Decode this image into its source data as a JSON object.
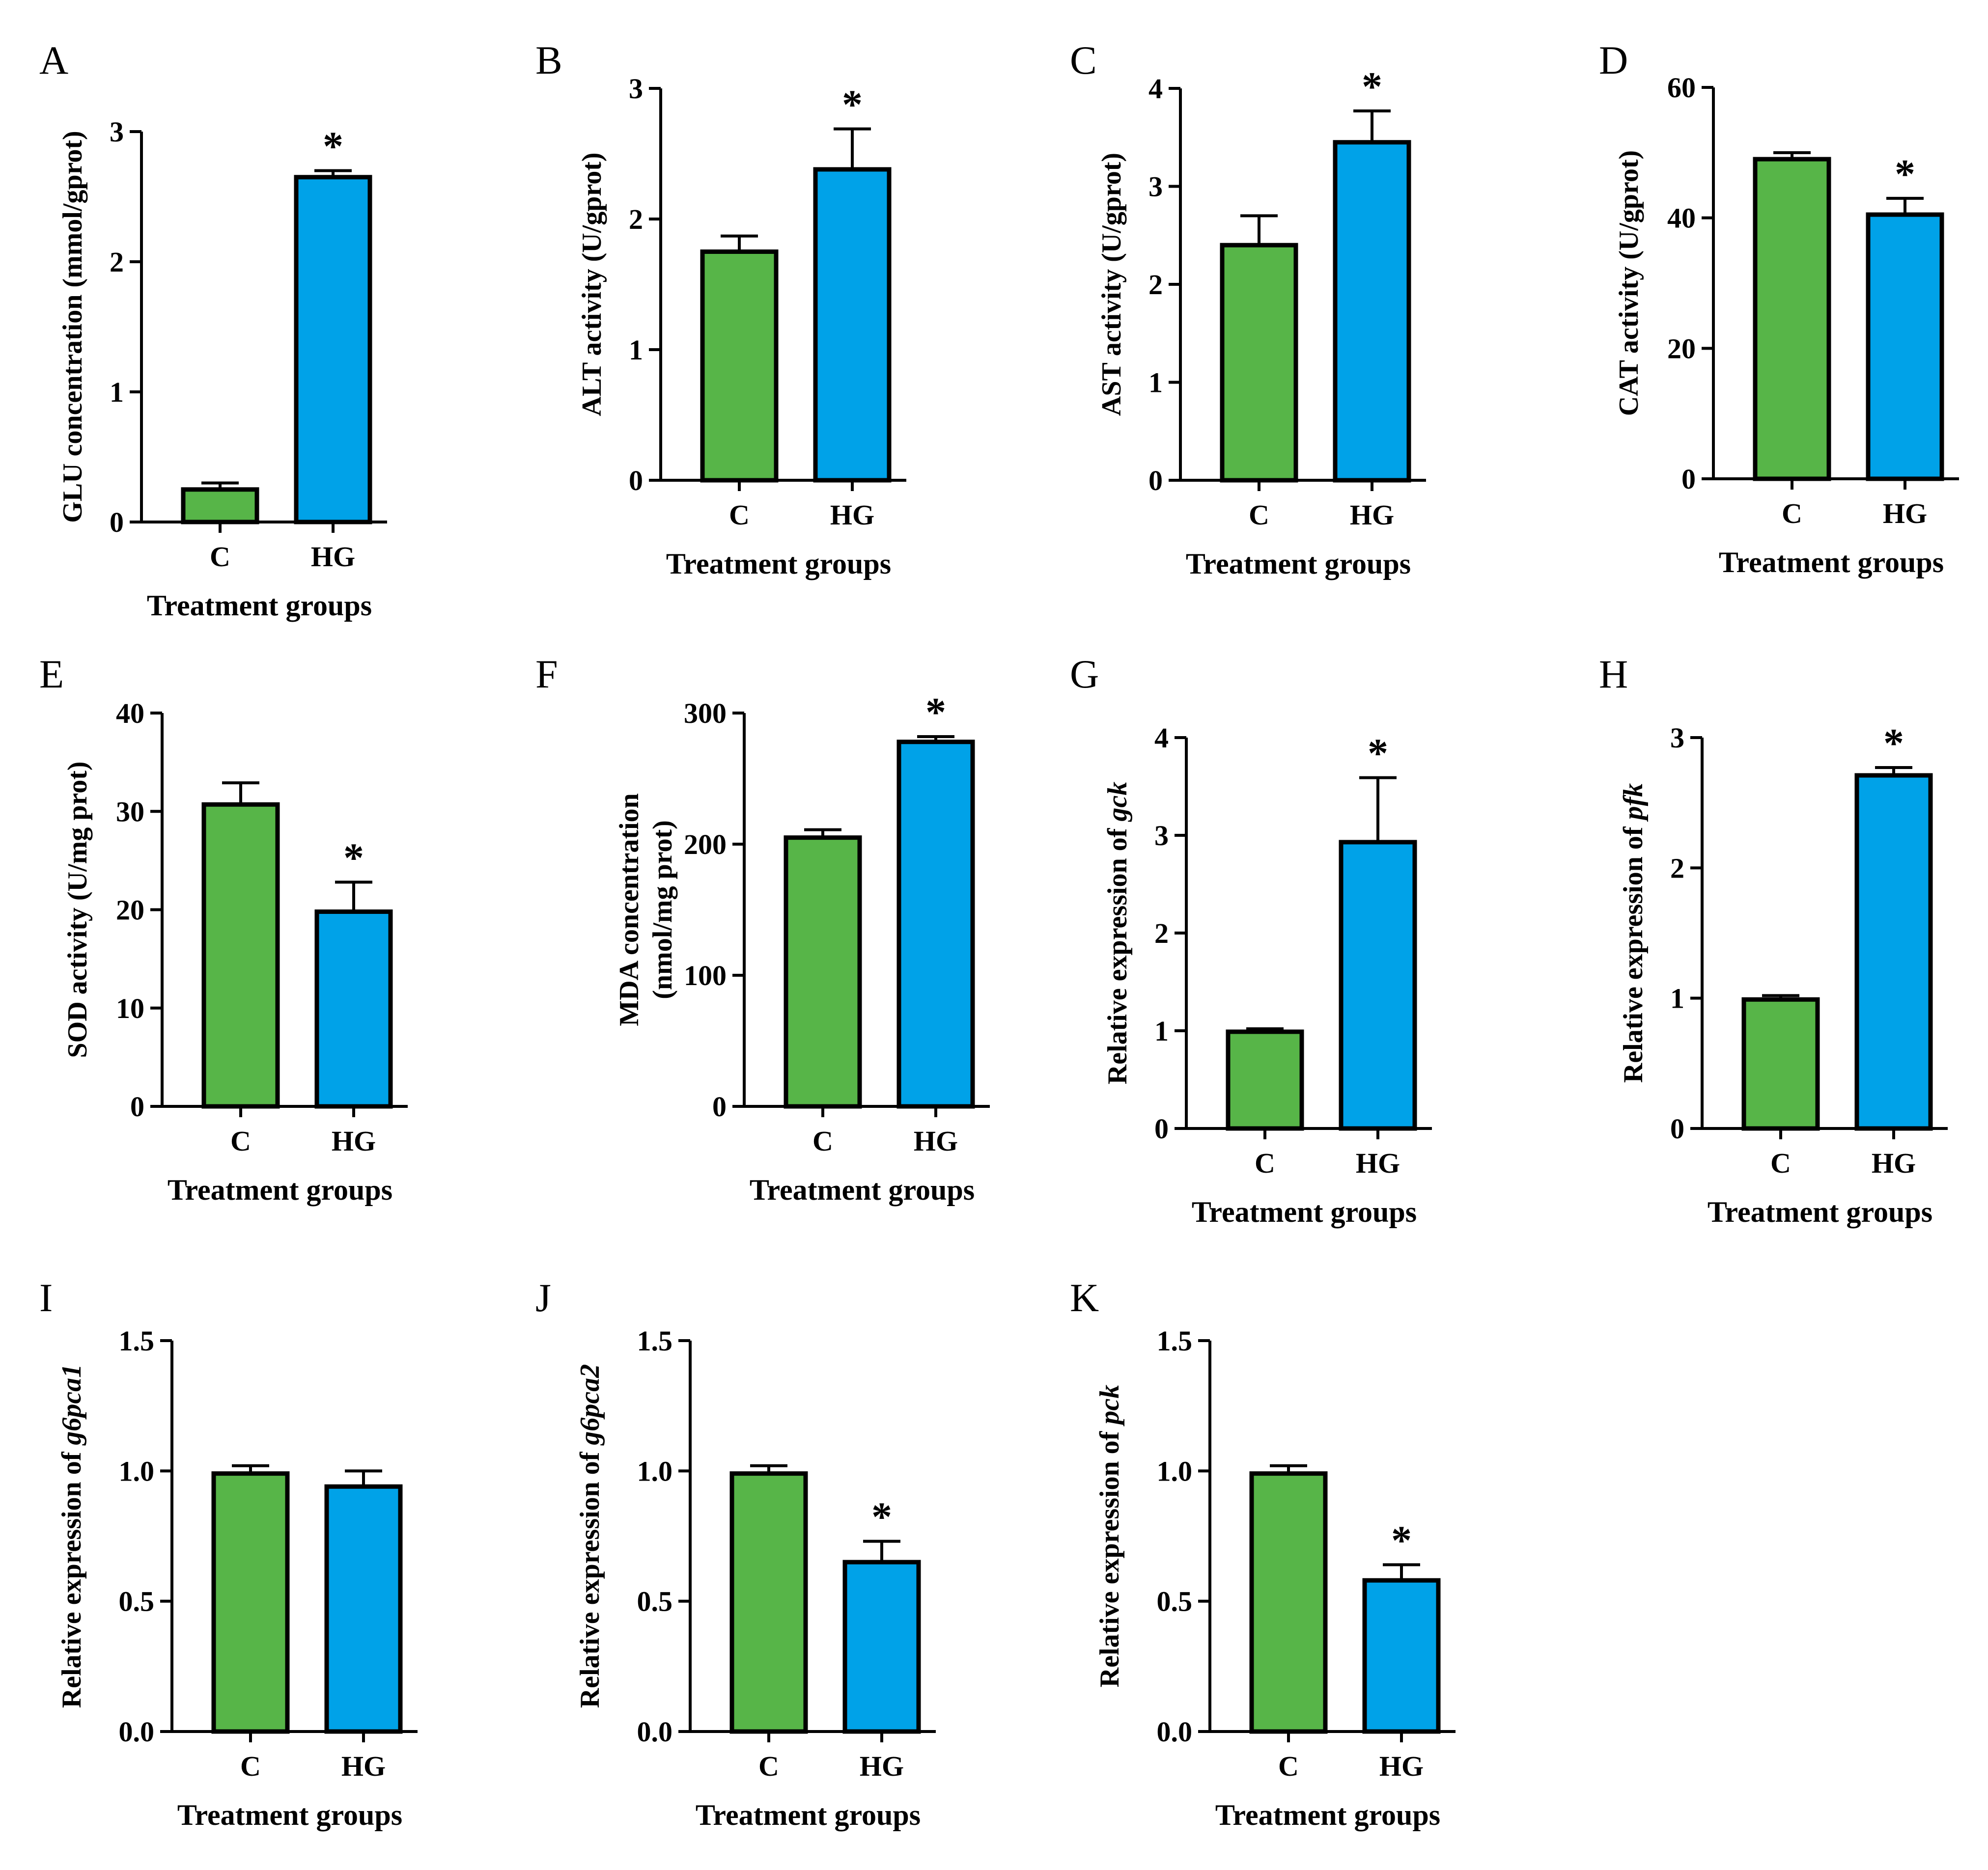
{
  "colors": {
    "C": "#57b548",
    "HG": "#00a2e8",
    "axis": "#000000"
  },
  "chart_data": [
    {
      "panel": "A",
      "type": "bar",
      "title": "",
      "xlabel": "Treatment groups",
      "ylabel": "GLU concentration (mmol/gprot)",
      "ylabel_parts": [
        {
          "t": "GLU concentration (mmol/gprot)",
          "i": false
        }
      ],
      "categories": [
        "C",
        "HG"
      ],
      "values": [
        0.25,
        2.65
      ],
      "errors": [
        0.05,
        0.05
      ],
      "significance": [
        "",
        "*"
      ],
      "ylim": [
        0,
        3
      ],
      "yticks": [
        "0",
        "1",
        "2",
        "3"
      ]
    },
    {
      "panel": "B",
      "type": "bar",
      "title": "",
      "xlabel": "Treatment groups",
      "ylabel": "ALT activity (U/gprot)",
      "ylabel_parts": [
        {
          "t": "ALT activity (U/gprot)",
          "i": false
        }
      ],
      "categories": [
        "C",
        "HG"
      ],
      "values": [
        1.75,
        2.38
      ],
      "errors": [
        0.12,
        0.31
      ],
      "significance": [
        "",
        "*"
      ],
      "ylim": [
        0,
        3
      ],
      "yticks": [
        "0",
        "1",
        "2",
        "3"
      ]
    },
    {
      "panel": "C",
      "type": "bar",
      "title": "",
      "xlabel": "Treatment groups",
      "ylabel": "AST activity (U/gprot)",
      "ylabel_parts": [
        {
          "t": "AST activity (U/gprot)",
          "i": false
        }
      ],
      "categories": [
        "C",
        "HG"
      ],
      "values": [
        2.4,
        3.45
      ],
      "errors": [
        0.3,
        0.32
      ],
      "significance": [
        "",
        "*"
      ],
      "ylim": [
        0,
        4
      ],
      "yticks": [
        "0",
        "1",
        "2",
        "3",
        "4"
      ]
    },
    {
      "panel": "D",
      "type": "bar",
      "title": "",
      "xlabel": "Treatment groups",
      "ylabel": "CAT activity (U/gprot)",
      "ylabel_parts": [
        {
          "t": "CAT activity (U/gprot)",
          "i": false
        }
      ],
      "categories": [
        "C",
        "HG"
      ],
      "values": [
        49,
        40.5
      ],
      "errors": [
        1.0,
        2.5
      ],
      "significance": [
        "",
        "*"
      ],
      "ylim": [
        0,
        60
      ],
      "yticks": [
        "0",
        "20",
        "40",
        "60"
      ]
    },
    {
      "panel": "E",
      "type": "bar",
      "title": "",
      "xlabel": "Treatment groups",
      "ylabel": "SOD activity (U/mg prot)",
      "ylabel_parts": [
        {
          "t": "SOD activity (U/mg prot)",
          "i": false
        }
      ],
      "categories": [
        "C",
        "HG"
      ],
      "values": [
        30.7,
        19.8
      ],
      "errors": [
        2.2,
        3.0
      ],
      "significance": [
        "",
        "*"
      ],
      "ylim": [
        0,
        40
      ],
      "yticks": [
        "0",
        "10",
        "20",
        "30",
        "40"
      ]
    },
    {
      "panel": "F",
      "type": "bar",
      "title": "",
      "xlabel": "Treatment groups",
      "ylabel": "MDA concentration (nmol/mg prot)",
      "ylabel_lines": [
        "MDA concentration",
        "(nmol/mg prot)"
      ],
      "categories": [
        "C",
        "HG"
      ],
      "values": [
        205,
        278
      ],
      "errors": [
        6,
        4
      ],
      "significance": [
        "",
        "*"
      ],
      "ylim": [
        0,
        300
      ],
      "yticks": [
        "0",
        "100",
        "200",
        "300"
      ]
    },
    {
      "panel": "G",
      "type": "bar",
      "title": "",
      "xlabel": "Treatment groups",
      "ylabel": "Relative expression of gck",
      "ylabel_parts": [
        {
          "t": "Relative expression of ",
          "i": false
        },
        {
          "t": "gck",
          "i": true
        }
      ],
      "categories": [
        "C",
        "HG"
      ],
      "values": [
        0.99,
        2.93
      ],
      "errors": [
        0.03,
        0.66
      ],
      "significance": [
        "",
        "*"
      ],
      "ylim": [
        0,
        4
      ],
      "yticks": [
        "0",
        "1",
        "2",
        "3",
        "4"
      ]
    },
    {
      "panel": "H",
      "type": "bar",
      "title": "",
      "xlabel": "Treatment groups",
      "ylabel": "Relative expression of pfk",
      "ylabel_parts": [
        {
          "t": "Relative expression of ",
          "i": false
        },
        {
          "t": "pfk",
          "i": true
        }
      ],
      "categories": [
        "C",
        "HG"
      ],
      "values": [
        0.99,
        2.71
      ],
      "errors": [
        0.03,
        0.06
      ],
      "significance": [
        "",
        "*"
      ],
      "ylim": [
        0,
        3
      ],
      "yticks": [
        "0",
        "1",
        "2",
        "3"
      ]
    },
    {
      "panel": "I",
      "type": "bar",
      "title": "",
      "xlabel": "Treatment groups",
      "ylabel": "Relative expression of g6pca1",
      "ylabel_parts": [
        {
          "t": "Relative expression of ",
          "i": false
        },
        {
          "t": "g6pca1",
          "i": true
        }
      ],
      "categories": [
        "C",
        "HG"
      ],
      "values": [
        0.99,
        0.94
      ],
      "errors": [
        0.03,
        0.06
      ],
      "significance": [
        "",
        ""
      ],
      "ylim": [
        0,
        1.5
      ],
      "yticks": [
        "0.0",
        "0.5",
        "1.0",
        "1.5"
      ]
    },
    {
      "panel": "J",
      "type": "bar",
      "title": "",
      "xlabel": "Treatment groups",
      "ylabel": "Relative expression of g6pca2",
      "ylabel_parts": [
        {
          "t": "Relative expression of ",
          "i": false
        },
        {
          "t": "g6pca2",
          "i": true
        }
      ],
      "categories": [
        "C",
        "HG"
      ],
      "values": [
        0.99,
        0.65
      ],
      "errors": [
        0.03,
        0.08
      ],
      "significance": [
        "",
        "*"
      ],
      "ylim": [
        0,
        1.5
      ],
      "yticks": [
        "0.0",
        "0.5",
        "1.0",
        "1.5"
      ]
    },
    {
      "panel": "K",
      "type": "bar",
      "title": "",
      "xlabel": "Treatment groups",
      "ylabel": "Relative expression of pck",
      "ylabel_parts": [
        {
          "t": "Relative expression of ",
          "i": false
        },
        {
          "t": "pck",
          "i": true
        }
      ],
      "categories": [
        "C",
        "HG"
      ],
      "values": [
        0.99,
        0.58
      ],
      "errors": [
        0.03,
        0.06
      ],
      "significance": [
        "",
        "*"
      ],
      "ylim": [
        0,
        1.5
      ],
      "yticks": [
        "0.0",
        "0.5",
        "1.0",
        "1.5"
      ]
    }
  ]
}
